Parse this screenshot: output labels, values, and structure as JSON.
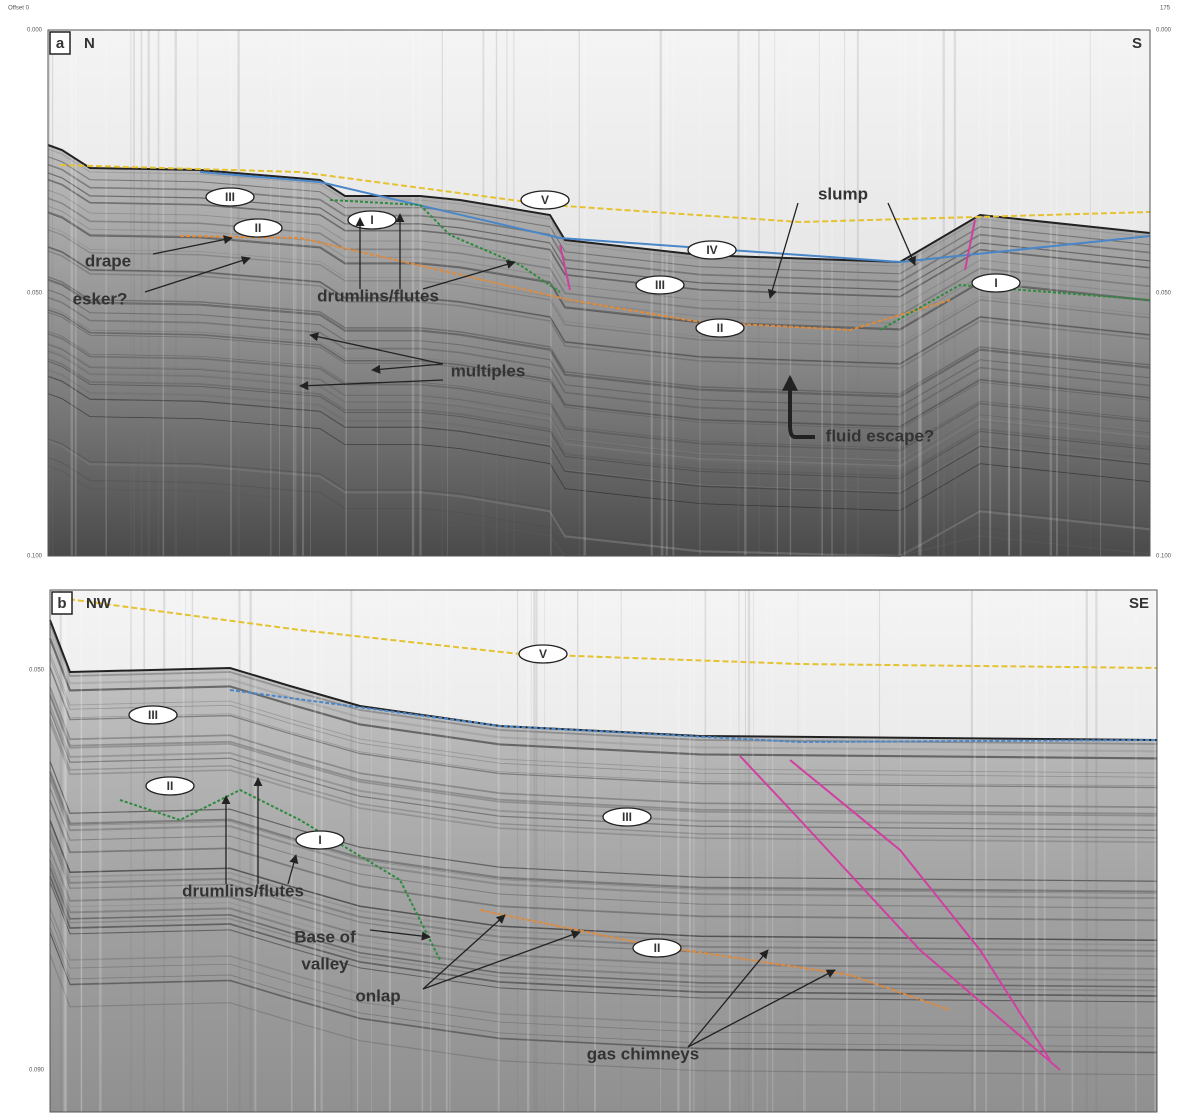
{
  "axis": {
    "top_left": "Offset 0",
    "top_right": "175"
  },
  "panels": [
    {
      "label": "a",
      "left": "N",
      "right": "S",
      "left_ticks": [
        "0.000",
        "0.050",
        "0.100"
      ],
      "right_ticks": [
        "0.000",
        "0.050",
        "0.100"
      ],
      "units": [
        "III",
        "II",
        "I",
        "V",
        "IV",
        "III",
        "II",
        "I"
      ],
      "annotations": [
        [
          "drape"
        ],
        [
          "esker?"
        ],
        [
          "drumlins/flutes"
        ],
        [
          "multiples"
        ],
        [
          "slump"
        ],
        [
          "fluid escape?"
        ]
      ]
    },
    {
      "label": "b",
      "left": "NW",
      "right": "SE",
      "left_ticks": [
        "0.050",
        "0.090"
      ],
      "units": [
        "V",
        "III",
        "II",
        "I",
        "III",
        "II"
      ],
      "annotations": [
        [
          "drumlins/flutes"
        ],
        [
          "Base of",
          "valley"
        ],
        [
          "onlap"
        ],
        [
          "gas chimneys"
        ]
      ]
    }
  ]
}
